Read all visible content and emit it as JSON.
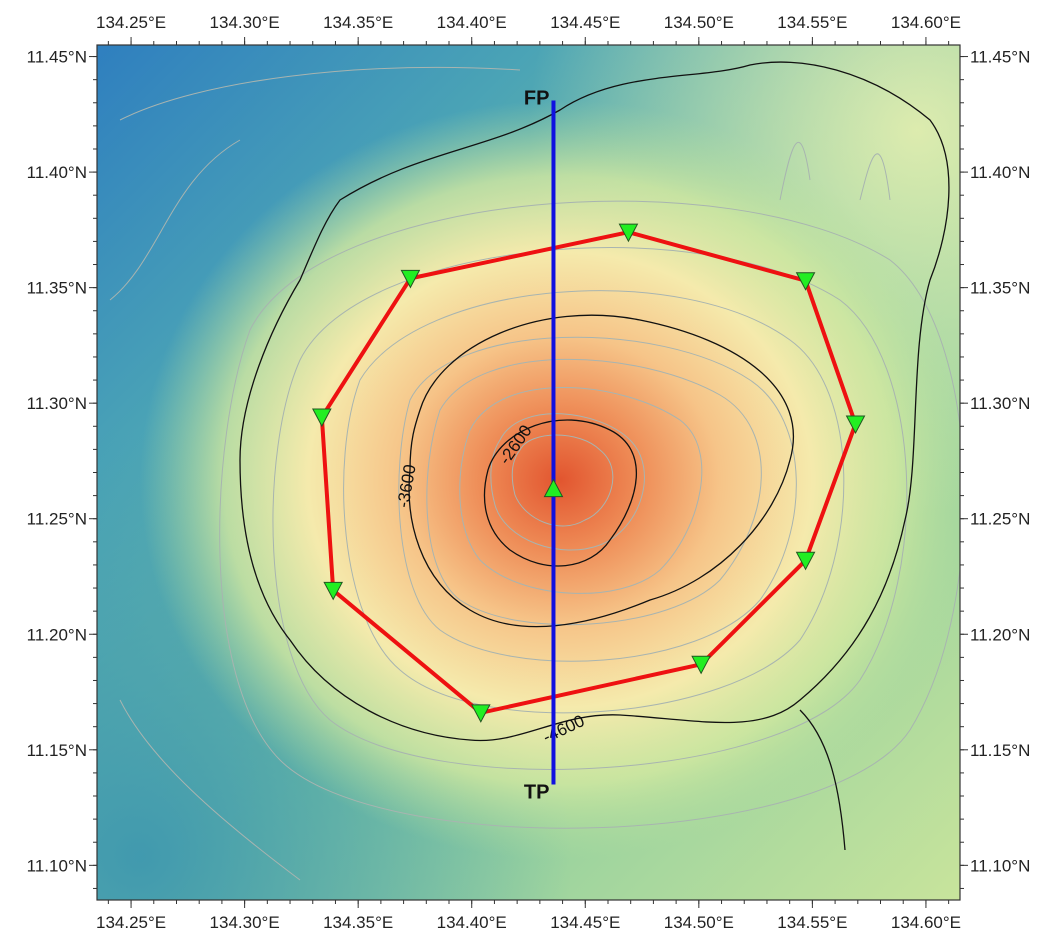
{
  "map": {
    "lon_range": [
      134.235,
      134.615
    ],
    "lat_range": [
      11.085,
      11.455
    ],
    "lon_ticks": [
      {
        "value": 134.25,
        "label": "134.25°E"
      },
      {
        "value": 134.3,
        "label": "134.30°E"
      },
      {
        "value": 134.35,
        "label": "134.35°E"
      },
      {
        "value": 134.4,
        "label": "134.40°E"
      },
      {
        "value": 134.45,
        "label": "134.45°E"
      },
      {
        "value": 134.5,
        "label": "134.50°E"
      },
      {
        "value": 134.55,
        "label": "134.55°E"
      },
      {
        "value": 134.6,
        "label": "134.60°E"
      }
    ],
    "lat_ticks": [
      {
        "value": 11.45,
        "label": "11.45°N"
      },
      {
        "value": 11.4,
        "label": "11.40°N"
      },
      {
        "value": 11.35,
        "label": "11.35°N"
      },
      {
        "value": 11.3,
        "label": "11.30°N"
      },
      {
        "value": 11.25,
        "label": "11.25°N"
      },
      {
        "value": 11.2,
        "label": "11.20°N"
      },
      {
        "value": 11.15,
        "label": "11.15°N"
      },
      {
        "value": 11.1,
        "label": "11.10°N"
      }
    ],
    "contour_labels": [
      "-2600",
      "-3600",
      "-4600"
    ],
    "profile_line": {
      "start_label": "FP",
      "end_label": "TP",
      "start": {
        "lon": 134.436,
        "lat": 11.431
      },
      "end": {
        "lon": 134.436,
        "lat": 11.135
      },
      "color": "#1010e0"
    },
    "stations": [
      {
        "lon": 134.469,
        "lat": 11.374
      },
      {
        "lon": 134.547,
        "lat": 11.353
      },
      {
        "lon": 134.569,
        "lat": 11.291
      },
      {
        "lon": 134.547,
        "lat": 11.232
      },
      {
        "lon": 134.501,
        "lat": 11.187
      },
      {
        "lon": 134.404,
        "lat": 11.166
      },
      {
        "lon": 134.339,
        "lat": 11.219
      },
      {
        "lon": 134.334,
        "lat": 11.294
      },
      {
        "lon": 134.373,
        "lat": 11.354
      }
    ],
    "center_station": {
      "lon": 134.436,
      "lat": 11.263
    },
    "station_color": "#22ee22",
    "ring_color": "#ee1111",
    "colors": {
      "deep": "#2f86c0",
      "mid": "#6fc0a0",
      "shallow": "#e9f0a8",
      "summit": "#e8653a"
    }
  }
}
